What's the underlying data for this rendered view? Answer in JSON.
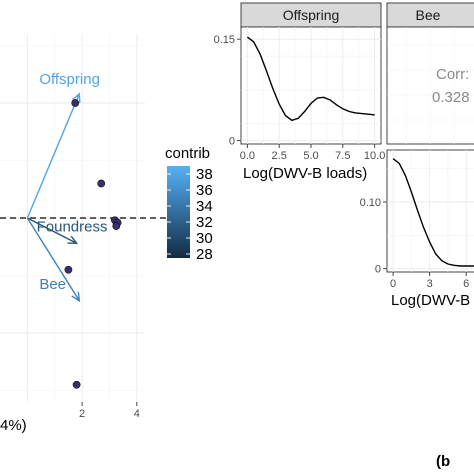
{
  "chart_data": [
    {
      "type": "scatter",
      "panel": "biplot",
      "xlabel_fragment": "4%)",
      "x_ticks": [
        "2",
        "4"
      ],
      "x_range": [
        -1.0,
        4.3
      ],
      "y_range": [
        -1.6,
        1.6
      ],
      "points": [
        {
          "x": 1.75,
          "y": 1.0
        },
        {
          "x": 2.7,
          "y": 0.3
        },
        {
          "x": 3.2,
          "y": -0.02
        },
        {
          "x": 3.3,
          "y": -0.04
        },
        {
          "x": 3.25,
          "y": -0.07
        },
        {
          "x": 1.5,
          "y": -0.45
        },
        {
          "x": 1.8,
          "y": -1.45
        }
      ],
      "vectors": [
        {
          "label": "Offspring",
          "x": 1.9,
          "y": 1.08,
          "contrib": 38
        },
        {
          "label": "Foundress",
          "x": 1.8,
          "y": -0.22,
          "contrib": 31
        },
        {
          "label": "Bee",
          "x": 1.9,
          "y": -0.72,
          "contrib": 35
        }
      ],
      "hline_y": 0.0,
      "colorbar": {
        "title": "contrib",
        "ticks": [
          38,
          36,
          34,
          32,
          30,
          28
        ],
        "range": [
          27.5,
          39
        ],
        "low_color": "#132b43",
        "high_color": "#56b1f7"
      },
      "point_color": "#3b2e6e"
    },
    {
      "type": "line",
      "panel": "density",
      "strip_label": "Offspring",
      "xlabel": "Log(DWV-B loads)",
      "x_ticks": [
        "0.0",
        "2.5",
        "5.0",
        "7.5",
        "10.0"
      ],
      "y_ticks": [
        "0",
        "0.15"
      ],
      "x_range": [
        -0.5,
        10.5
      ],
      "y_range": [
        -0.005,
        0.168
      ],
      "x": [
        0.0,
        0.5,
        1.0,
        1.5,
        2.0,
        2.5,
        3.0,
        3.5,
        4.0,
        4.5,
        5.0,
        5.5,
        6.0,
        6.5,
        7.0,
        7.5,
        8.0,
        8.5,
        9.0,
        9.5,
        10.0
      ],
      "y": [
        0.153,
        0.146,
        0.128,
        0.103,
        0.077,
        0.054,
        0.037,
        0.03,
        0.033,
        0.043,
        0.055,
        0.063,
        0.064,
        0.06,
        0.053,
        0.047,
        0.043,
        0.041,
        0.04,
        0.039,
        0.038
      ]
    },
    {
      "type": "line",
      "panel": "density",
      "strip_label": "Bee",
      "xlabel": "Log(DWV-B",
      "x_ticks": [
        "0",
        "3",
        "6"
      ],
      "y_ticks": [
        "0",
        "0.10"
      ],
      "x_range": [
        -0.5,
        7.3
      ],
      "y_range": [
        -0.005,
        0.178
      ],
      "x": [
        0.0,
        0.5,
        1.0,
        1.5,
        2.0,
        2.5,
        3.0,
        3.5,
        4.0,
        4.5,
        5.0,
        5.5,
        6.0,
        6.5,
        7.0,
        7.3
      ],
      "y": [
        0.165,
        0.158,
        0.14,
        0.115,
        0.088,
        0.062,
        0.04,
        0.022,
        0.012,
        0.007,
        0.005,
        0.004,
        0.004,
        0.004,
        0.004,
        0.004
      ]
    },
    {
      "type": "table",
      "panel": "correlation",
      "strip_label": "Bee",
      "corr_label": "Corr:",
      "corr_value": "0.328"
    }
  ],
  "panel_tag": "(b"
}
